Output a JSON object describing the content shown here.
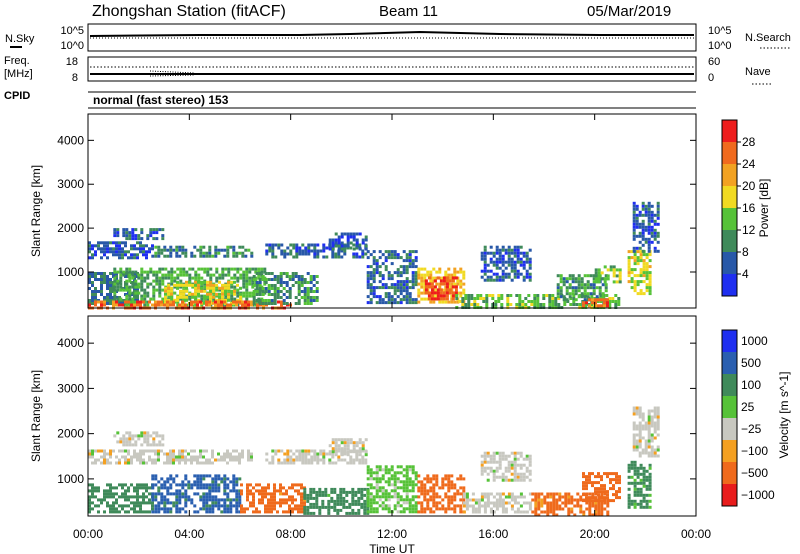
{
  "header": {
    "station": "Zhongshan Station (fitACF)",
    "beam": "Beam 11",
    "date": "05/Mar/2019"
  },
  "strips": {
    "nsky_label": "N.Sky",
    "nsky_ticks": [
      "10^5",
      "10^0"
    ],
    "nsearch_label": "N.Search",
    "nsearch_ticks": [
      "10^5",
      "10^0"
    ],
    "freq_label": "Freq.",
    "freq_unit": "[MHz]",
    "freq_ticks": [
      "18",
      "8"
    ],
    "nave_label": "Nave",
    "nave_ticks": [
      "60",
      "0"
    ],
    "cpid_label": "CPID",
    "cpid_text": "normal (fast stereo) 153"
  },
  "colors": {
    "power": [
      "#1f2ff0",
      "#2858a8",
      "#3f8a5a",
      "#56c238",
      "#f1da22",
      "#f2a222",
      "#f06a1e",
      "#ee1d1d"
    ],
    "velocity": [
      "#e81c1c",
      "#ef6a1c",
      "#f4a021",
      "#c8c8c0",
      "#56c238",
      "#3f8a5a",
      "#2a5fb0",
      "#1f2ff0"
    ]
  },
  "chart_data": [
    {
      "type": "heatmap",
      "title": "",
      "xlabel": "Time UT",
      "ylabel": "Slant Range [km]",
      "x_ticks": [
        "00:00",
        "04:00",
        "08:00",
        "12:00",
        "16:00",
        "20:00",
        "00:00"
      ],
      "y_ticks": [
        "1000",
        "2000",
        "3000",
        "4000"
      ],
      "ylim": [
        180,
        4600
      ],
      "x_range_hours": [
        0,
        24
      ],
      "colorbar": {
        "label": "Power [dB]",
        "ticks": [
          "4",
          "8",
          "12",
          "16",
          "20",
          "24",
          "28"
        ],
        "range": [
          0,
          32
        ]
      },
      "regions": [
        {
          "t0": 0.0,
          "t1": 2.5,
          "r0": 1300,
          "r1": 1700,
          "value": 6
        },
        {
          "t0": 1.0,
          "t1": 3.0,
          "r0": 1750,
          "r1": 2000,
          "value": 6
        },
        {
          "t0": 2.5,
          "t1": 6.5,
          "r0": 1350,
          "r1": 1600,
          "value": 9
        },
        {
          "t0": 0.0,
          "t1": 2.0,
          "r0": 250,
          "r1": 1000,
          "value": 8
        },
        {
          "t0": 1.0,
          "t1": 7.0,
          "r0": 250,
          "r1": 1100,
          "value": 12
        },
        {
          "t0": 3.0,
          "t1": 6.0,
          "r0": 300,
          "r1": 800,
          "value": 18
        },
        {
          "t0": 0.0,
          "t1": 8.0,
          "r0": 200,
          "r1": 350,
          "value": 26
        },
        {
          "t0": 6.5,
          "t1": 9.0,
          "r0": 250,
          "r1": 1000,
          "value": 10
        },
        {
          "t0": 7.0,
          "t1": 11.0,
          "r0": 1350,
          "r1": 1650,
          "value": 7
        },
        {
          "t0": 9.5,
          "t1": 11.0,
          "r0": 1500,
          "r1": 1900,
          "value": 5
        },
        {
          "t0": 11.0,
          "t1": 13.0,
          "r0": 300,
          "r1": 1500,
          "value": 7
        },
        {
          "t0": 13.0,
          "t1": 14.8,
          "r0": 300,
          "r1": 1100,
          "value": 20
        },
        {
          "t0": 13.3,
          "t1": 14.5,
          "r0": 400,
          "r1": 900,
          "value": 28
        },
        {
          "t0": 15.5,
          "t1": 17.5,
          "r0": 800,
          "r1": 1600,
          "value": 6
        },
        {
          "t0": 14.5,
          "t1": 21.0,
          "r0": 200,
          "r1": 500,
          "value": 13
        },
        {
          "t0": 18.5,
          "t1": 20.5,
          "r0": 400,
          "r1": 950,
          "value": 11
        },
        {
          "t0": 19.5,
          "t1": 20.5,
          "r0": 200,
          "r1": 400,
          "value": 26
        },
        {
          "t0": 20.0,
          "t1": 21.0,
          "r0": 800,
          "r1": 1150,
          "value": 14
        },
        {
          "t0": 21.3,
          "t1": 22.2,
          "r0": 500,
          "r1": 1500,
          "value": 17
        },
        {
          "t0": 21.5,
          "t1": 22.5,
          "r0": 1500,
          "r1": 2600,
          "value": 6
        }
      ]
    },
    {
      "type": "heatmap",
      "title": "",
      "xlabel": "Time UT",
      "ylabel": "Slant Range [km]",
      "x_ticks": [
        "00:00",
        "04:00",
        "08:00",
        "12:00",
        "16:00",
        "20:00",
        "00:00"
      ],
      "y_ticks": [
        "1000",
        "2000",
        "3000",
        "4000"
      ],
      "ylim": [
        180,
        4600
      ],
      "x_range_hours": [
        0,
        24
      ],
      "colorbar": {
        "label": "Velocity [m s^-1]",
        "ticks": [
          "1000",
          "500",
          "100",
          "25",
          "−25",
          "−100",
          "−500",
          "−1000"
        ],
        "bins": 8
      },
      "regions": [
        {
          "t0": 1.0,
          "t1": 3.0,
          "r0": 1750,
          "r1": 2050,
          "value": 0
        },
        {
          "t0": 0.0,
          "t1": 6.5,
          "r0": 1350,
          "r1": 1650,
          "value": 0
        },
        {
          "t0": 7.0,
          "t1": 11.0,
          "r0": 1350,
          "r1": 1650,
          "value": 0
        },
        {
          "t0": 9.5,
          "t1": 11.0,
          "r0": 1550,
          "r1": 1900,
          "value": 0
        },
        {
          "t0": 15.5,
          "t1": 17.5,
          "r0": 1000,
          "r1": 1600,
          "value": 0
        },
        {
          "t0": 21.5,
          "t1": 22.5,
          "r0": 1500,
          "r1": 2600,
          "value": 0
        },
        {
          "t0": 0.0,
          "t1": 2.5,
          "r0": 250,
          "r1": 900,
          "value": 300
        },
        {
          "t0": 2.5,
          "t1": 6.0,
          "r0": 300,
          "r1": 1100,
          "value": 700
        },
        {
          "t0": 6.0,
          "t1": 8.5,
          "r0": 250,
          "r1": 900,
          "value": -200
        },
        {
          "t0": 8.5,
          "t1": 11.0,
          "r0": 250,
          "r1": 800,
          "value": 200
        },
        {
          "t0": 11.0,
          "t1": 13.0,
          "r0": 300,
          "r1": 1300,
          "value": 50
        },
        {
          "t0": 13.0,
          "t1": 14.8,
          "r0": 300,
          "r1": 1100,
          "value": -300
        },
        {
          "t0": 14.8,
          "t1": 17.5,
          "r0": 250,
          "r1": 700,
          "value": 0
        },
        {
          "t0": 17.5,
          "t1": 20.5,
          "r0": 200,
          "r1": 700,
          "value": -150
        },
        {
          "t0": 19.5,
          "t1": 21.0,
          "r0": 500,
          "r1": 1150,
          "value": -300
        },
        {
          "t0": 21.3,
          "t1": 22.2,
          "r0": 400,
          "r1": 1400,
          "value": 150
        }
      ]
    }
  ]
}
